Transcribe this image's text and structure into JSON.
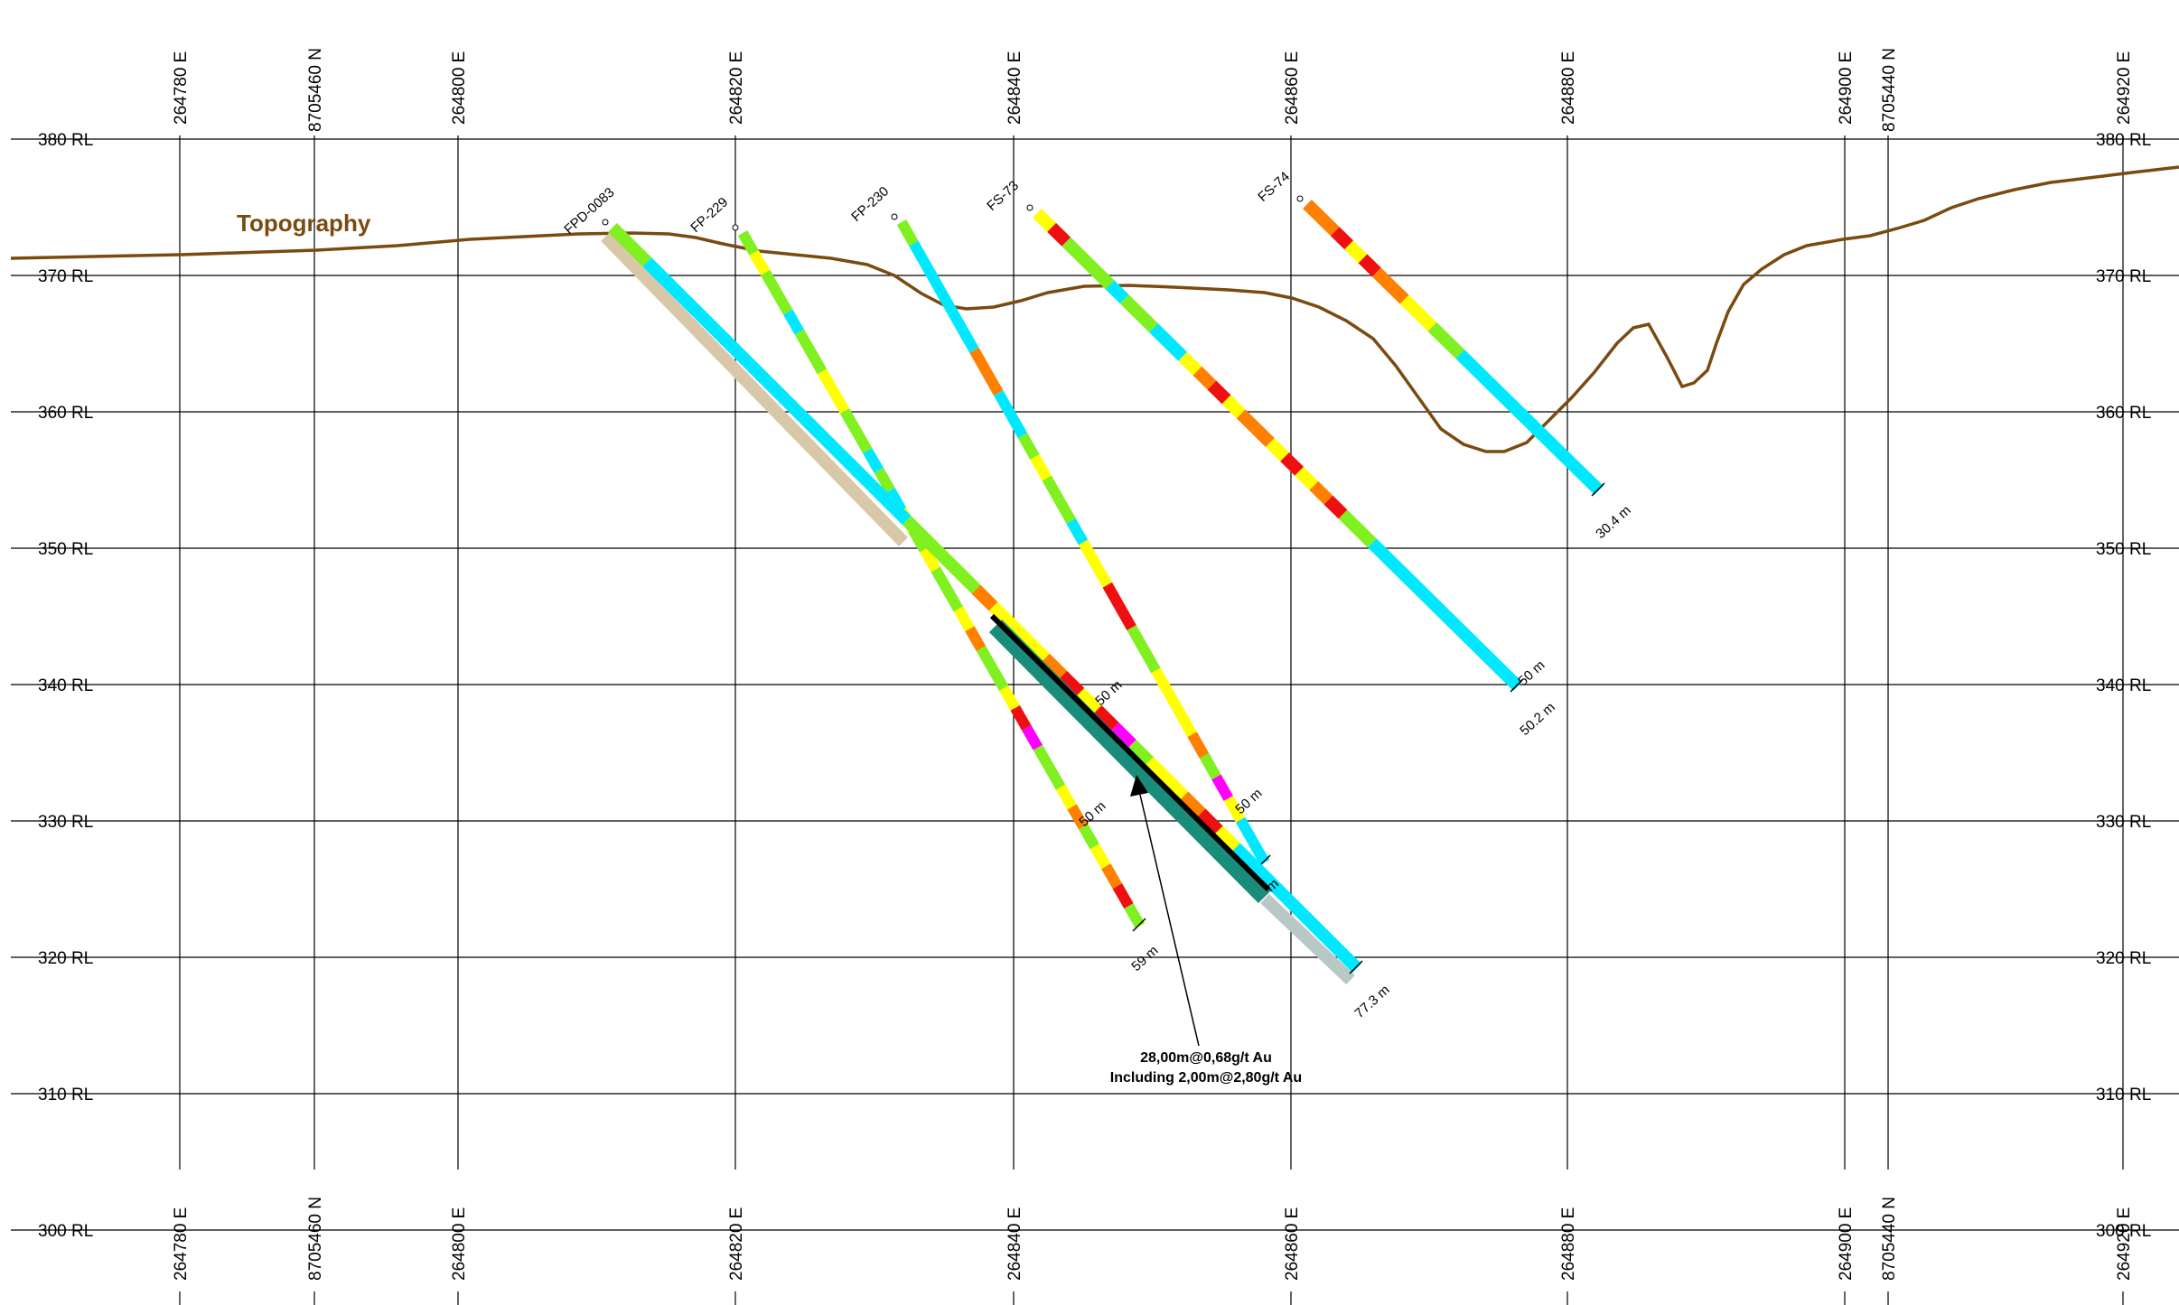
{
  "section": {
    "x_labels": [
      "264780 E",
      "8705460 N",
      "264800 E",
      "264820 E",
      "264840 E",
      "264860 E",
      "264880 E",
      "264900 E",
      "8705440 N",
      "264920 E"
    ],
    "rl_labels": [
      "380 RL",
      "370 RL",
      "360 RL",
      "350 RL",
      "340 RL",
      "330 RL",
      "320 RL",
      "310 RL",
      "300 RL"
    ],
    "rl_values": [
      380,
      370,
      360,
      350,
      340,
      330,
      320,
      310,
      300
    ],
    "topography_label": "Topography",
    "topography_color": "#7a4a10",
    "drillholes": [
      {
        "name": "FPD-0083",
        "end_depth": "77.3 m",
        "mid_depth": "m"
      },
      {
        "name": "FP-229",
        "end_depth": "59 m",
        "mid_depth": "50 m"
      },
      {
        "name": "FP-230",
        "end_depth": "",
        "mid_depth": "50 m"
      },
      {
        "name": "FS-73",
        "end_depth": "50.2 m",
        "mid_depth": "50 m"
      },
      {
        "name": "FS-74",
        "end_depth": "30.4 m",
        "mid_depth": ""
      }
    ],
    "extra_depth_labels": [
      "50 m"
    ],
    "intercept": {
      "line1": "28,00m@0,68g/t Au",
      "line2": "Including 2,00m@2,80g/t Au"
    },
    "grade_colors": {
      "cyan": "#00e8ff",
      "green": "#80f020",
      "yellow": "#ffff00",
      "orange": "#ff8000",
      "red": "#ee1010",
      "magenta": "#ff00ff"
    }
  }
}
